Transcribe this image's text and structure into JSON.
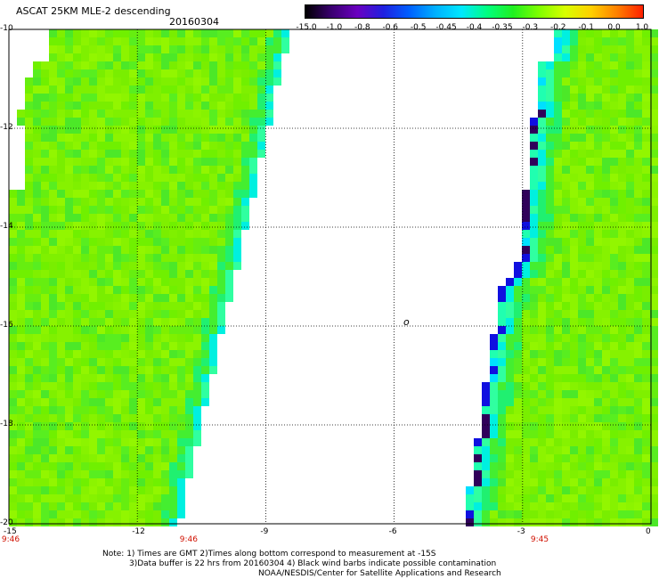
{
  "header": {
    "title": "ASCAT 25KM MLE-2 descending",
    "date": "20160304"
  },
  "colorbar": {
    "labels": [
      "-15.0",
      "-1.0",
      "-0.8",
      "-0.6",
      "-0.5",
      "-0.45",
      "-0.4",
      "-0.35",
      "-0.3",
      "-0.2",
      "-0.1",
      "0.0",
      "1.0"
    ],
    "colors": [
      "#000000",
      "#3a0070",
      "#6a00c0",
      "#2020e0",
      "#0060ff",
      "#00b0ff",
      "#00e8ff",
      "#00ff80",
      "#20f020",
      "#80ff00",
      "#d8ff00",
      "#ffd000",
      "#ff8000",
      "#ff2000"
    ]
  },
  "map": {
    "lon_range": [
      -15,
      0
    ],
    "lat_range": [
      -20,
      -10
    ],
    "x_ticks": [
      "-15",
      "-12",
      "-9",
      "-6",
      "-3",
      "0"
    ],
    "y_ticks": [
      "-10",
      "-12",
      "-14",
      "-16",
      "-18",
      "-20"
    ],
    "marker_label": "o",
    "times": [
      {
        "label": "9:46",
        "lon": -15
      },
      {
        "label": "9:46",
        "lon": -10.8
      },
      {
        "label": "9:45",
        "lon": -2.6
      }
    ]
  },
  "notes": {
    "line1": "Note: 1) Times are GMT 2)Times along bottom correspond to measurement at -15S",
    "line2": "3)Data buffer is 22 hrs from 20160304 4) Black wind barbs indicate possible contamination",
    "line3": "NOAA/NESDIS/Center for Satellite Applications and Research"
  }
}
